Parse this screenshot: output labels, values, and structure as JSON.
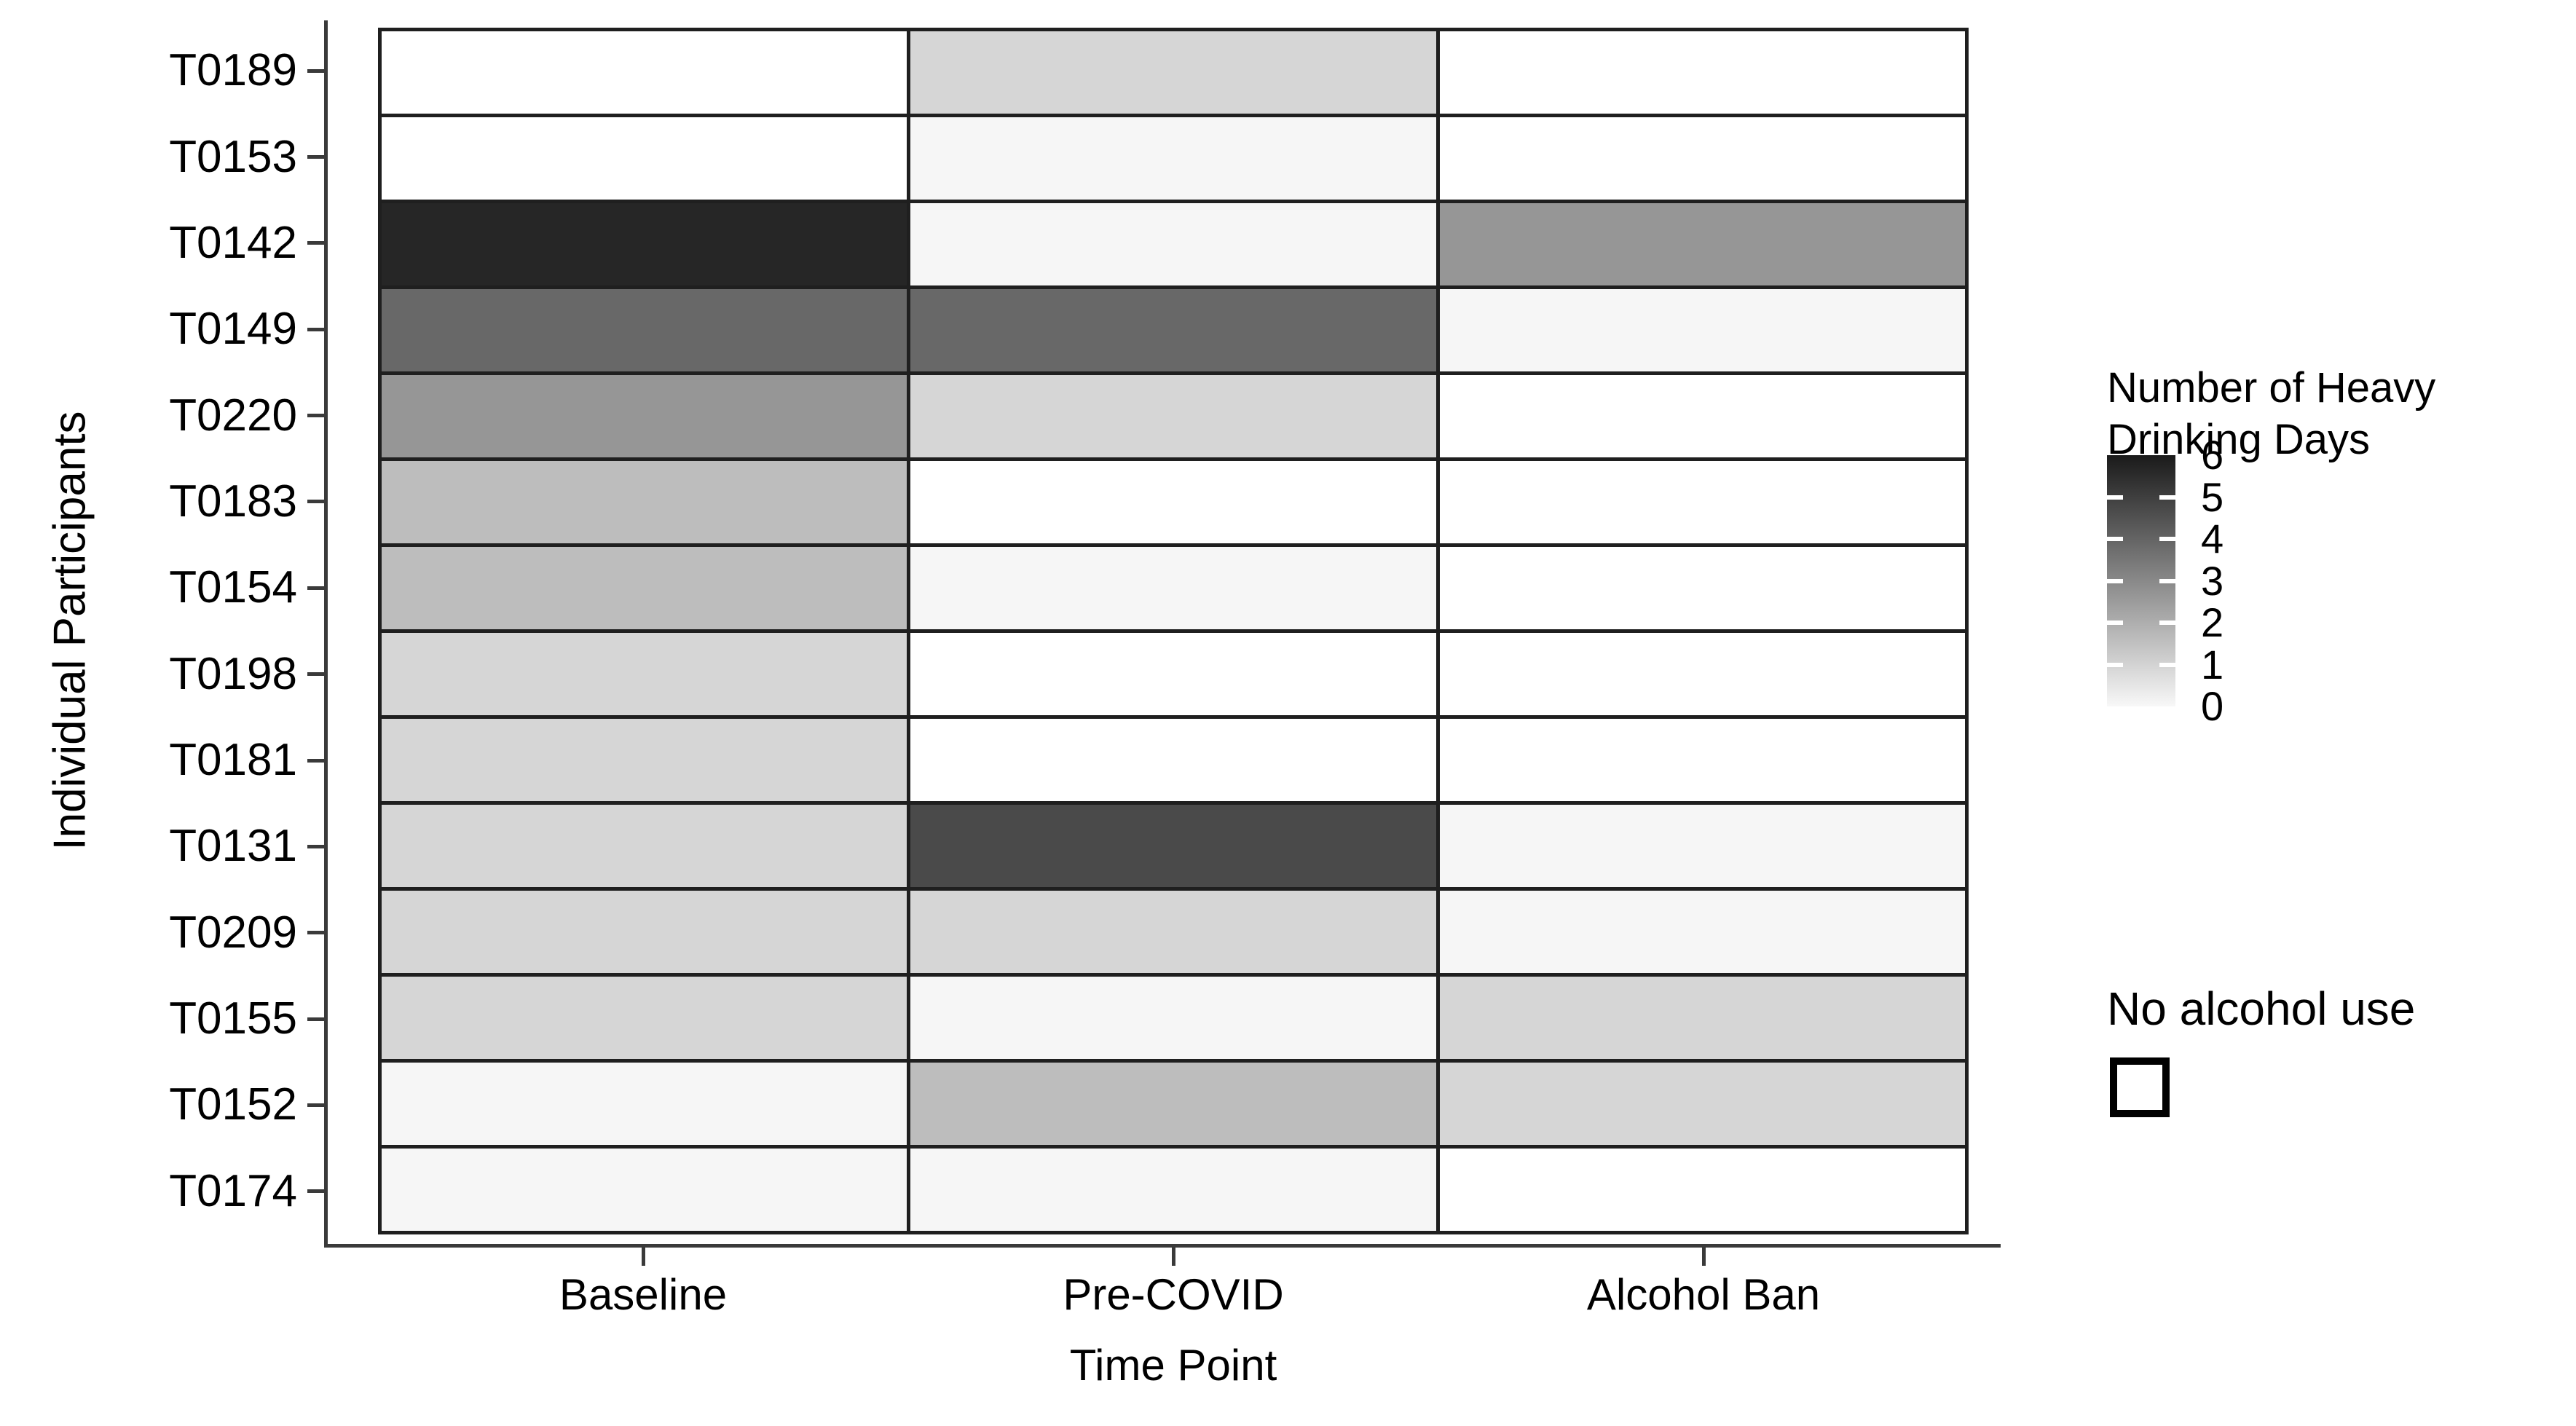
{
  "figure": {
    "x_axis_title": "Time Point",
    "y_axis_title": "Individual Participants"
  },
  "legend": {
    "title": "Number of Heavy\nDrinking Days",
    "tick_labels": [
      "6",
      "5",
      "4",
      "3",
      "2",
      "1",
      "0"
    ],
    "na_label": "No alcohol use"
  },
  "colors": {
    "cell_border": "#1f1f1f",
    "axis_line": "#3a3a3a",
    "na_fill": "#ffffff",
    "gradient_top": "#1a1a1a",
    "gradient_bottom": "#f8f8f8",
    "scale": {
      "0": "#f6f6f6",
      "1": "#d6d6d6",
      "2": "#bdbdbd",
      "3": "#969696",
      "4": "#686868",
      "5": "#4a4a4a",
      "6": "#262626"
    }
  },
  "chart_data": {
    "type": "heatmap",
    "title": "",
    "xlabel": "Time Point",
    "ylabel": "Individual Participants",
    "x_categories": [
      "Baseline",
      "Pre-COVID",
      "Alcohol Ban"
    ],
    "y_categories": [
      "T0189",
      "T0153",
      "T0142",
      "T0149",
      "T0220",
      "T0183",
      "T0154",
      "T0198",
      "T0181",
      "T0131",
      "T0209",
      "T0155",
      "T0152",
      "T0174"
    ],
    "legend_title": "Number of Heavy Drinking Days",
    "value_range": [
      0,
      6
    ],
    "na_meaning": "No alcohol use",
    "rows": [
      {
        "participant": "T0189",
        "values": [
          null,
          1,
          null
        ]
      },
      {
        "participant": "T0153",
        "values": [
          null,
          0,
          null
        ]
      },
      {
        "participant": "T0142",
        "values": [
          6,
          0,
          3
        ]
      },
      {
        "participant": "T0149",
        "values": [
          4,
          4,
          0
        ]
      },
      {
        "participant": "T0220",
        "values": [
          3,
          1,
          null
        ]
      },
      {
        "participant": "T0183",
        "values": [
          2,
          null,
          null
        ]
      },
      {
        "participant": "T0154",
        "values": [
          2,
          0,
          null
        ]
      },
      {
        "participant": "T0198",
        "values": [
          1,
          null,
          null
        ]
      },
      {
        "participant": "T0181",
        "values": [
          1,
          null,
          null
        ]
      },
      {
        "participant": "T0131",
        "values": [
          1,
          5,
          0
        ]
      },
      {
        "participant": "T0209",
        "values": [
          1,
          1,
          0
        ]
      },
      {
        "participant": "T0155",
        "values": [
          1,
          0,
          1
        ]
      },
      {
        "participant": "T0152",
        "values": [
          0,
          2,
          1
        ]
      },
      {
        "participant": "T0174",
        "values": [
          0,
          0,
          null
        ]
      }
    ]
  }
}
